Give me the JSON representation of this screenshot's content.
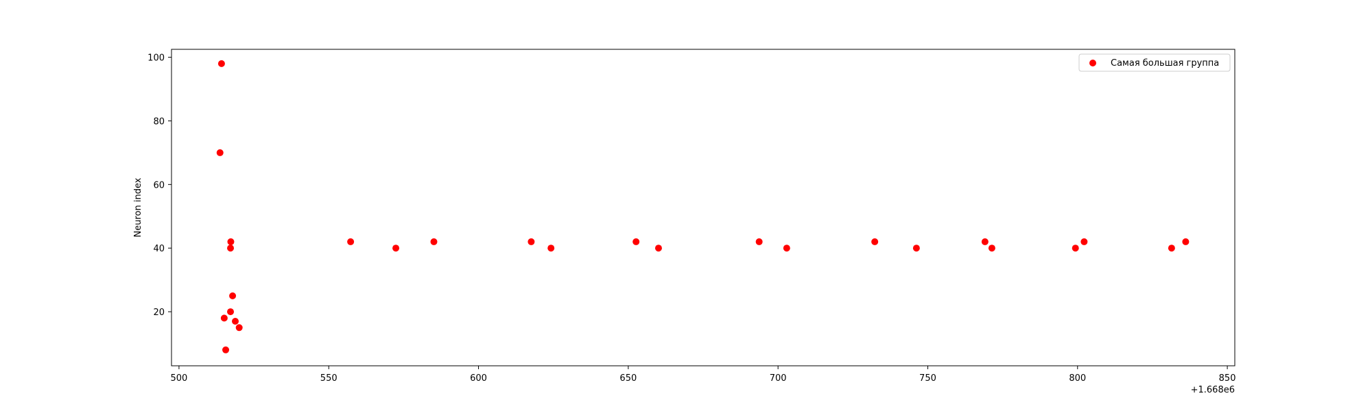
{
  "chart_data": {
    "type": "scatter",
    "title": "",
    "xlabel": "",
    "ylabel": "Neuron index",
    "x_offset_label": "+1.668e6",
    "x_ticks": [
      500,
      550,
      600,
      650,
      700,
      750,
      800,
      850
    ],
    "y_ticks": [
      20,
      40,
      60,
      80,
      100
    ],
    "xlim": [
      497.5,
      852.5
    ],
    "ylim": [
      3,
      102.5
    ],
    "grid": false,
    "legend_position": "top-right",
    "colors": {
      "series": "#ff0000",
      "axes": "#000000",
      "background": "#ffffff"
    },
    "series": [
      {
        "name": "Самая большая группа",
        "points": [
          {
            "x": 514.2,
            "y": 98
          },
          {
            "x": 513.7,
            "y": 70
          },
          {
            "x": 517.3,
            "y": 42
          },
          {
            "x": 517.2,
            "y": 40
          },
          {
            "x": 517.9,
            "y": 25
          },
          {
            "x": 517.2,
            "y": 20
          },
          {
            "x": 515.1,
            "y": 18
          },
          {
            "x": 518.8,
            "y": 17
          },
          {
            "x": 520.1,
            "y": 15
          },
          {
            "x": 515.6,
            "y": 8
          },
          {
            "x": 557.3,
            "y": 42
          },
          {
            "x": 572.4,
            "y": 40
          },
          {
            "x": 585.1,
            "y": 42
          },
          {
            "x": 617.6,
            "y": 42
          },
          {
            "x": 624.2,
            "y": 40
          },
          {
            "x": 652.6,
            "y": 42
          },
          {
            "x": 660.1,
            "y": 40
          },
          {
            "x": 693.7,
            "y": 42
          },
          {
            "x": 702.9,
            "y": 40
          },
          {
            "x": 732.3,
            "y": 42
          },
          {
            "x": 746.2,
            "y": 40
          },
          {
            "x": 769.1,
            "y": 42
          },
          {
            "x": 771.4,
            "y": 40
          },
          {
            "x": 799.3,
            "y": 40
          },
          {
            "x": 802.2,
            "y": 42
          },
          {
            "x": 831.4,
            "y": 40
          },
          {
            "x": 836.1,
            "y": 42
          }
        ]
      }
    ]
  }
}
